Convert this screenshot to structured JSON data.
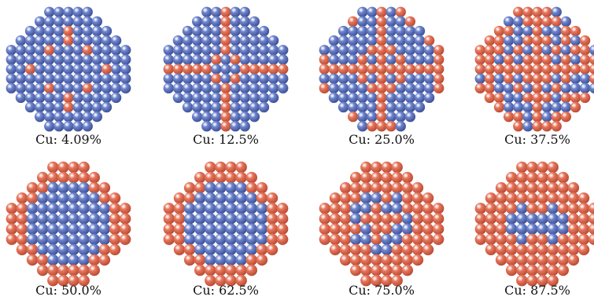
{
  "figure": {
    "colors": {
      "cu_atom": "#e8795f",
      "cu_atom_dark": "#b94a33",
      "host_atom": "#7087cf",
      "host_atom_dark": "#3d4f95",
      "background": "#ffffff"
    },
    "panels": [
      {
        "label": "Cu: 4.09%",
        "cu_fraction": 0.0409,
        "view": "top-row"
      },
      {
        "label": "Cu: 12.5%",
        "cu_fraction": 0.125,
        "view": "top-row"
      },
      {
        "label": "Cu: 25.0%",
        "cu_fraction": 0.25,
        "view": "top-row"
      },
      {
        "label": "Cu: 37.5%",
        "cu_fraction": 0.375,
        "view": "top-row"
      },
      {
        "label": "Cu: 50.0%",
        "cu_fraction": 0.5,
        "view": "bottom-row"
      },
      {
        "label": "Cu: 62.5%",
        "cu_fraction": 0.625,
        "view": "bottom-row"
      },
      {
        "label": "Cu: 75.0%",
        "cu_fraction": 0.75,
        "view": "bottom-row"
      },
      {
        "label": "Cu: 87.5%",
        "cu_fraction": 0.875,
        "view": "bottom-row"
      }
    ]
  }
}
